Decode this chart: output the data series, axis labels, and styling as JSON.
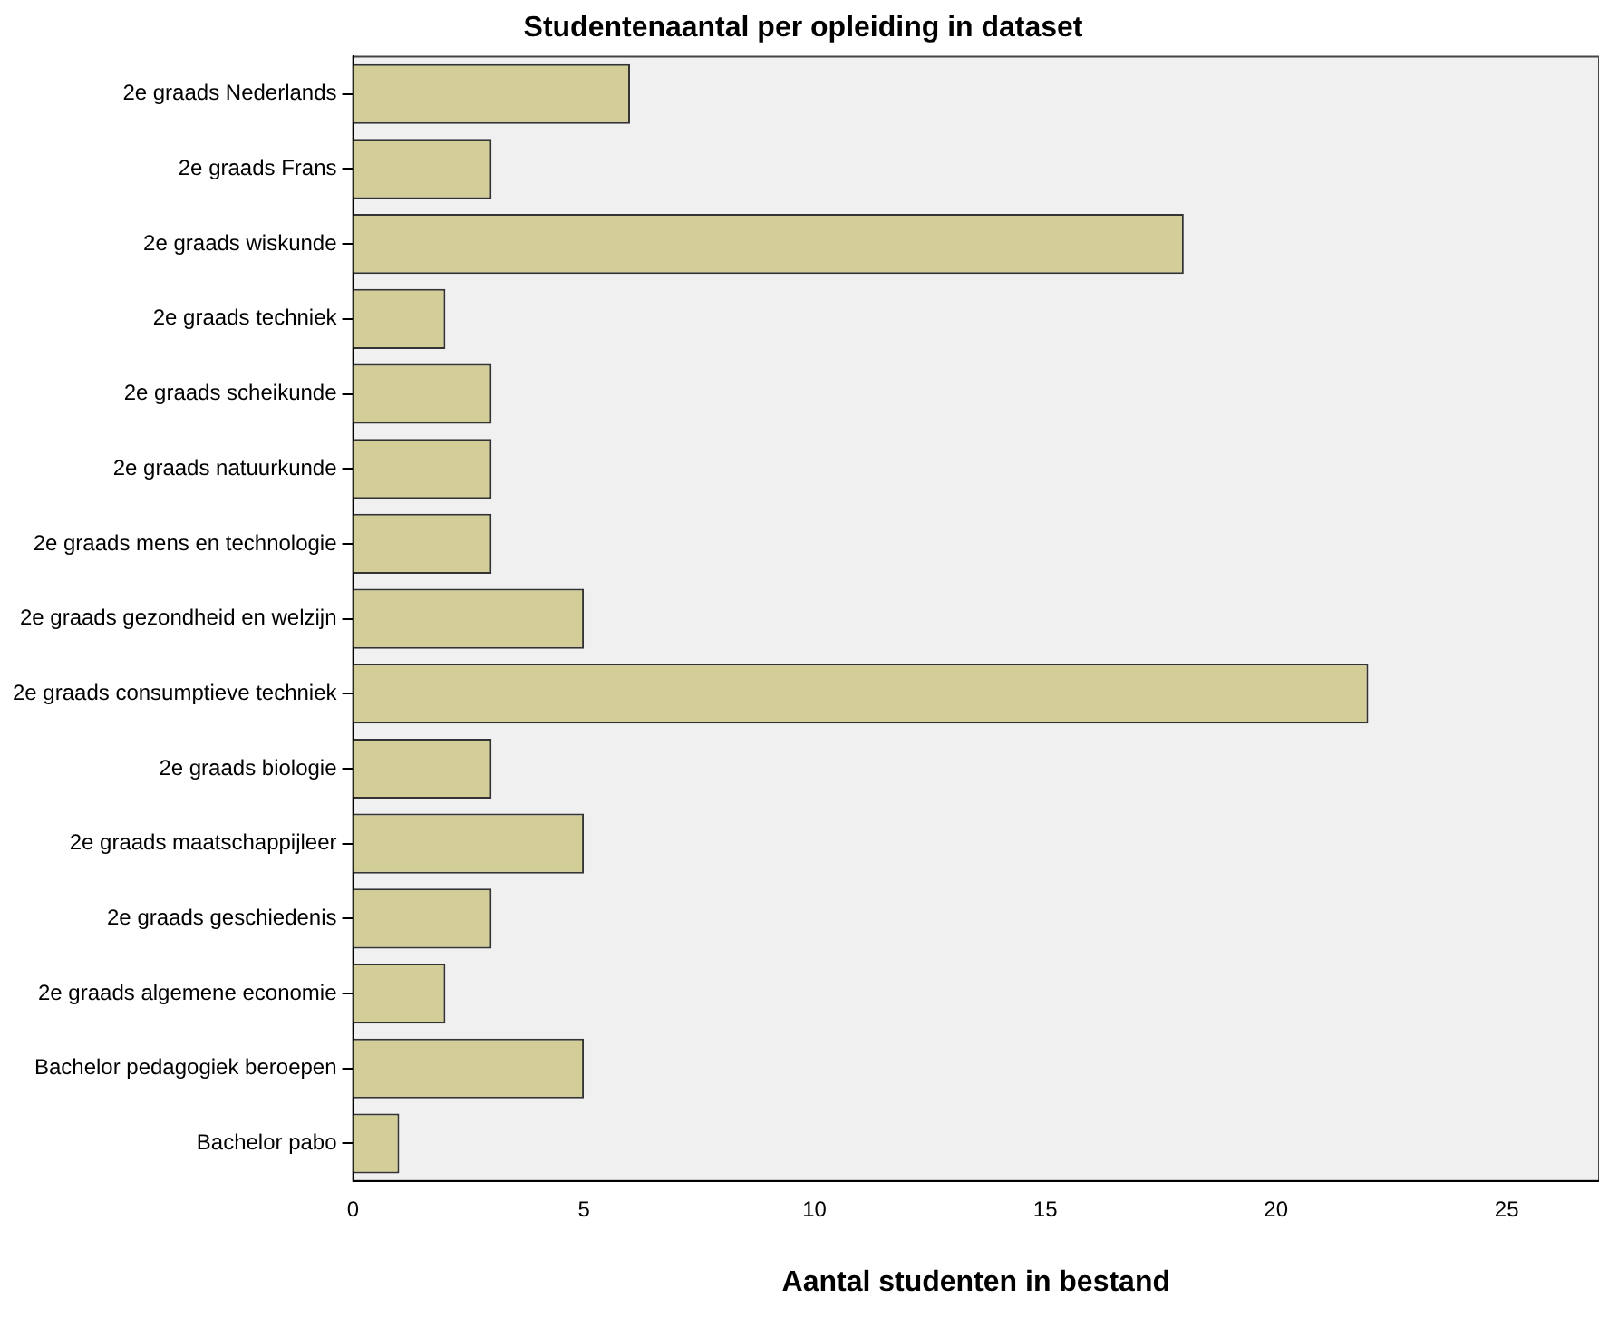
{
  "chart_data": {
    "type": "bar",
    "orientation": "horizontal",
    "title": "Studentenaantal per opleiding in dataset",
    "xlabel": "Aantal studenten in bestand",
    "categories": [
      "2e graads Nederlands",
      "2e graads Frans",
      "2e graads wiskunde",
      "2e graads techniek",
      "2e graads scheikunde",
      "2e graads natuurkunde",
      "2e graads mens en technologie",
      "2e graads gezondheid en welzijn",
      "2e graads consumptieve techniek",
      "2e graads biologie",
      "2e graads maatschappijleer",
      "2e graads geschiedenis",
      "2e graads algemene economie",
      "Bachelor pedagogiek beroepen",
      "Bachelor pabo"
    ],
    "values": [
      6,
      3,
      18,
      2,
      3,
      3,
      3,
      5,
      22,
      3,
      5,
      3,
      2,
      5,
      1
    ],
    "color": "#d3ce97",
    "xlim": [
      0,
      27
    ],
    "xticks": [
      0,
      5,
      10,
      15,
      20,
      25
    ],
    "grid": false,
    "legend": false
  }
}
